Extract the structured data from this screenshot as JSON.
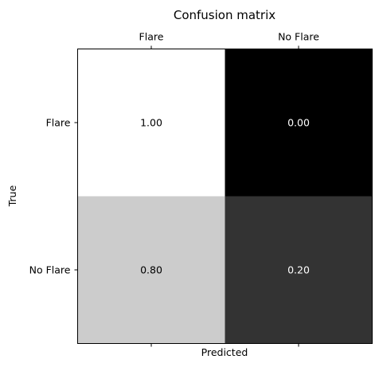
{
  "chart_data": {
    "type": "heatmap",
    "title": "Confusion matrix",
    "xlabel": "Predicted",
    "ylabel": "True",
    "x_categories": [
      "Flare",
      "No Flare"
    ],
    "y_categories": [
      "Flare",
      "No Flare"
    ],
    "values": [
      [
        1.0,
        0.0
      ],
      [
        0.8,
        0.2
      ]
    ],
    "value_labels": [
      [
        "1.00",
        "0.00"
      ],
      [
        "0.80",
        "0.20"
      ]
    ],
    "value_range": [
      0,
      1
    ],
    "colormap": "greys (black = 0, white = 1)",
    "x_tick_position": "top",
    "grid": false
  }
}
